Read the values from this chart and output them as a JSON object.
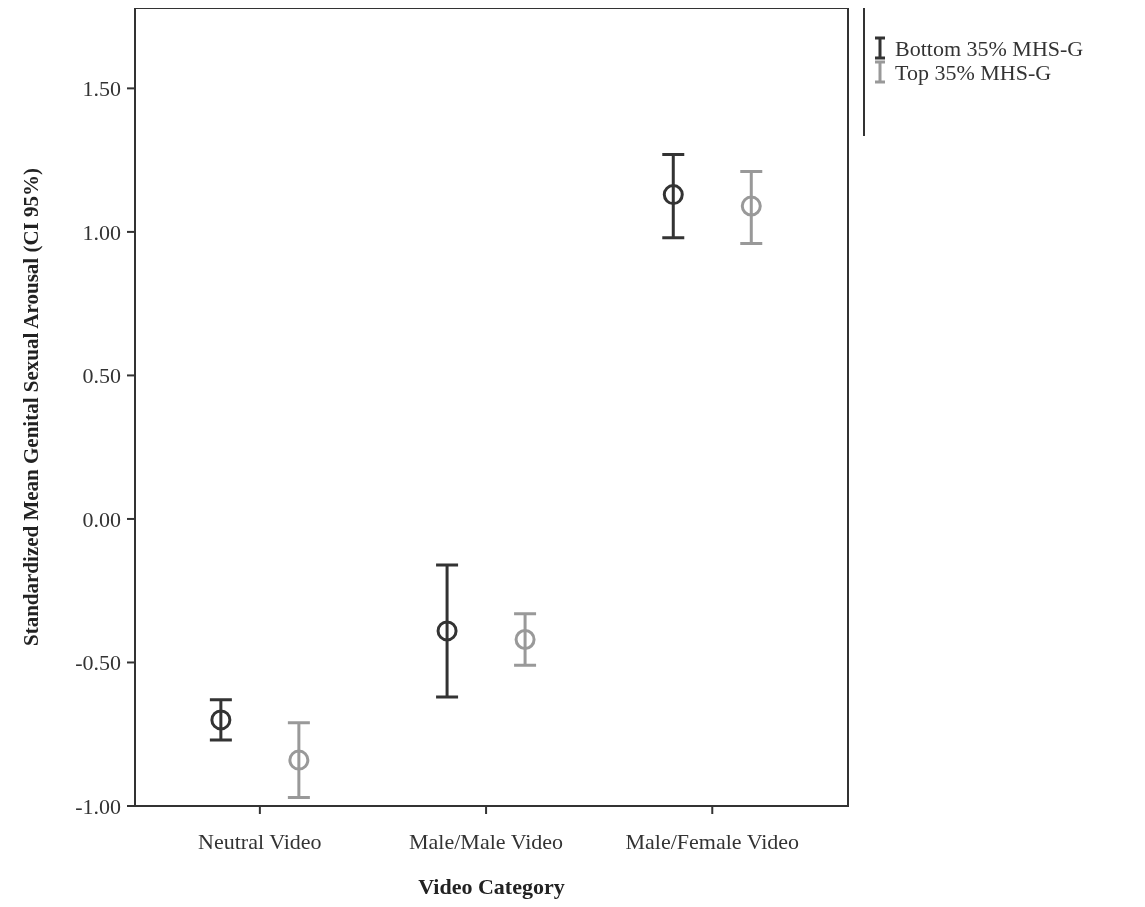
{
  "chart_data": {
    "type": "scatter",
    "xlabel": "Video Category",
    "ylabel": "Standardized Mean Genital Sexual Arousal (CI 95%)",
    "categories": [
      "Neutral Video",
      "Male/Male Video",
      "Male/Female Video"
    ],
    "series": [
      {
        "name": "Bottom 35% MHS-G",
        "color": "#333333",
        "values": [
          -0.7,
          -0.39,
          1.13
        ],
        "errors": [
          [
            -0.77,
            -0.63
          ],
          [
            -0.62,
            -0.16
          ],
          [
            0.98,
            1.27
          ]
        ]
      },
      {
        "name": "Top 35% MHS-G",
        "color": "#999999",
        "values": [
          -0.84,
          -0.42,
          1.09
        ],
        "errors": [
          [
            -0.97,
            -0.71
          ],
          [
            -0.51,
            -0.33
          ],
          [
            0.96,
            1.21
          ]
        ]
      }
    ],
    "ylim": [
      -1.0,
      1.78
    ],
    "yticks": [
      {
        "value": -1,
        "label": "-1.00"
      },
      {
        "value": -0.5,
        "label": "-0.50"
      },
      {
        "value": 0,
        "label": "0.00"
      },
      {
        "value": 0.5,
        "label": "0.50"
      },
      {
        "value": 1,
        "label": "1.00"
      },
      {
        "value": 1.5,
        "label": "1.50"
      }
    ],
    "grid": false,
    "legend": "top right",
    "marker": "circle"
  }
}
